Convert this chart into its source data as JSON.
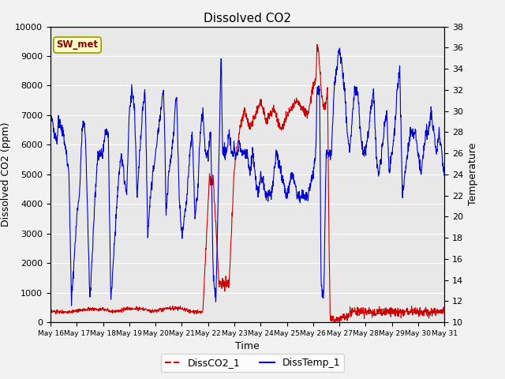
{
  "title": "Dissolved CO2",
  "xlabel": "Time",
  "ylabel_left": "Dissolved CO2 (ppm)",
  "ylabel_right": "Temperature",
  "ylim_left": [
    0,
    10000
  ],
  "ylim_right": [
    10,
    38
  ],
  "yticks_left": [
    0,
    1000,
    2000,
    3000,
    4000,
    5000,
    6000,
    7000,
    8000,
    9000,
    10000
  ],
  "yticks_right": [
    10,
    12,
    14,
    16,
    18,
    20,
    22,
    24,
    26,
    28,
    30,
    32,
    34,
    36,
    38
  ],
  "xtick_labels": [
    "May 16",
    "May 17",
    "May 18",
    "May 19",
    "May 20",
    "May 21",
    "May 22",
    "May 23",
    "May 24",
    "May 25",
    "May 26",
    "May 27",
    "May 28",
    "May 29",
    "May 30",
    "May 31"
  ],
  "legend_label_co2": "DissCO2_1",
  "legend_label_temp": "DissTemp_1",
  "co2_color": "#cc0000",
  "temp_color": "#0000cc",
  "annotation_text": "SW_met",
  "annotation_bg": "#ffffcc",
  "annotation_border": "#999900",
  "plot_bg": "#e8e8e8",
  "fig_bg": "#f2f2f2",
  "grid_color": "#ffffff",
  "title_fontsize": 11,
  "axis_fontsize": 9,
  "tick_fontsize": 8,
  "legend_fontsize": 9
}
